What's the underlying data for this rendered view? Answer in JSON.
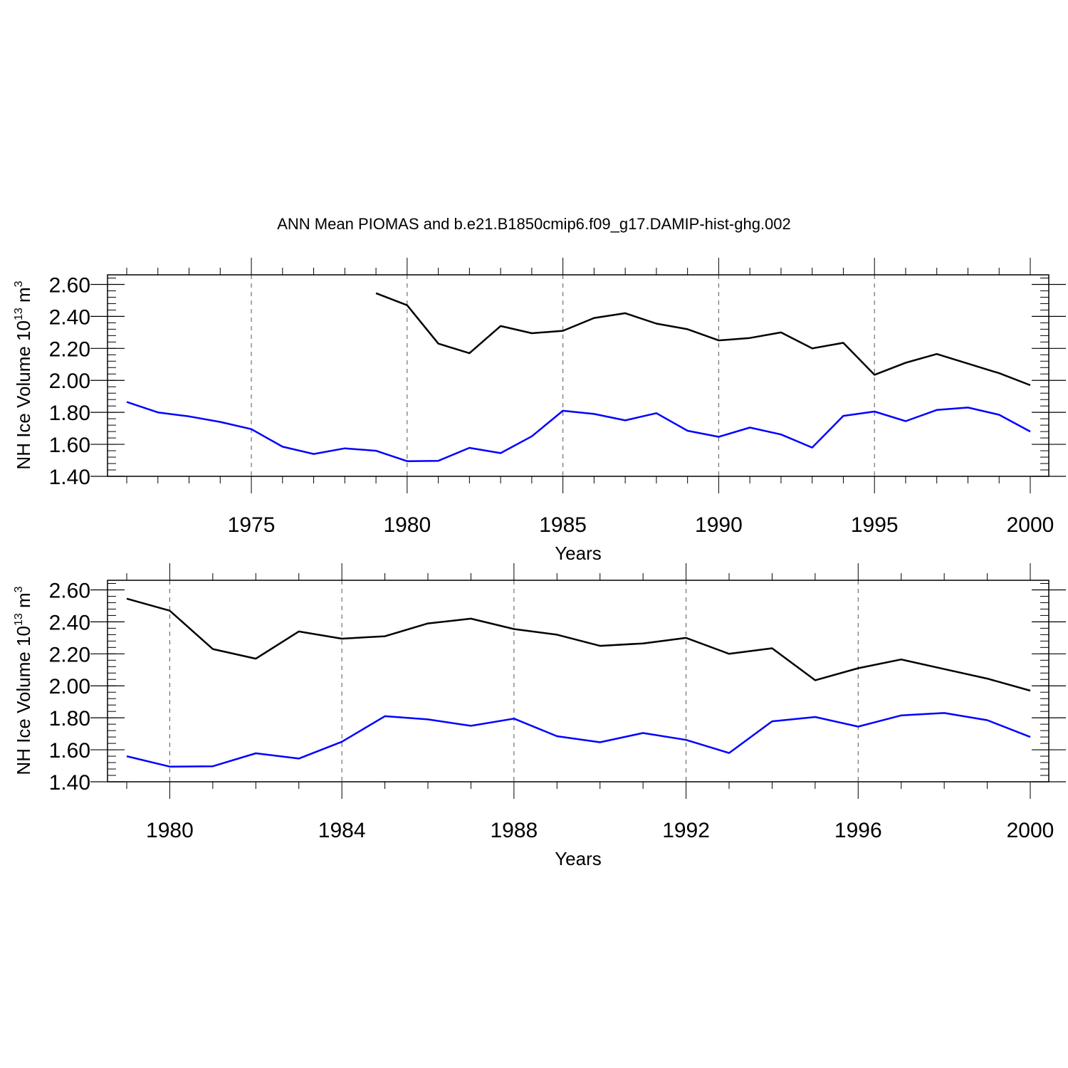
{
  "figure": {
    "title": "ANN Mean PIOMAS and b.e21.B1850cmip6.f09_g17.DAMIP-hist-ghg.002"
  },
  "chart_data": [
    {
      "type": "line",
      "xlabel": "Years",
      "ylabel_main": "NH Ice Volume 10",
      "ylabel_exp": "13",
      "ylabel_unit": " m",
      "ylabel_unit_exp": "3",
      "xlim": [
        1971,
        2000
      ],
      "ylim": [
        1.4,
        2.66
      ],
      "xticks": [
        1975,
        1980,
        1985,
        1990,
        1995,
        2000
      ],
      "yticks": [
        "1.40",
        "1.60",
        "1.80",
        "2.00",
        "2.20",
        "2.40",
        "2.60"
      ],
      "grid_x": "dashed vertical at major ticks",
      "series": [
        {
          "color": "#000000",
          "x": [
            1979,
            1980,
            1981,
            1982,
            1983,
            1984,
            1985,
            1986,
            1987,
            1988,
            1989,
            1990,
            1991,
            1992,
            1993,
            1994,
            1995,
            1996,
            1997,
            1998,
            1999,
            2000
          ],
          "y": [
            2.545,
            2.47,
            2.23,
            2.17,
            2.34,
            2.295,
            2.31,
            2.39,
            2.42,
            2.355,
            2.32,
            2.25,
            2.265,
            2.3,
            2.2,
            2.235,
            2.035,
            2.11,
            2.165,
            2.105,
            2.045,
            1.97
          ]
        },
        {
          "color": "#0000ff",
          "x": [
            1971,
            1972,
            1973,
            1974,
            1975,
            1976,
            1977,
            1978,
            1979,
            1980,
            1981,
            1982,
            1983,
            1984,
            1985,
            1986,
            1987,
            1988,
            1989,
            1990,
            1991,
            1992,
            1993,
            1994,
            1995,
            1996,
            1997,
            1998,
            1999,
            2000
          ],
          "y": [
            1.865,
            1.8,
            1.775,
            1.74,
            1.695,
            1.585,
            1.54,
            1.575,
            1.56,
            1.495,
            1.497,
            1.578,
            1.545,
            1.65,
            1.81,
            1.79,
            1.75,
            1.795,
            1.685,
            1.647,
            1.705,
            1.662,
            1.58,
            1.778,
            1.805,
            1.745,
            1.815,
            1.83,
            1.785,
            1.68
          ]
        }
      ]
    },
    {
      "type": "line",
      "xlabel": "Years",
      "ylabel_main": "NH Ice Volume 10",
      "ylabel_exp": "13",
      "ylabel_unit": " m",
      "ylabel_unit_exp": "3",
      "xlim": [
        1979,
        2000
      ],
      "ylim": [
        1.4,
        2.66
      ],
      "xticks": [
        1980,
        1984,
        1988,
        1992,
        1996,
        2000
      ],
      "yticks": [
        "1.40",
        "1.60",
        "1.80",
        "2.00",
        "2.20",
        "2.40",
        "2.60"
      ],
      "grid_x": "dashed vertical at major ticks",
      "series": [
        {
          "color": "#000000",
          "x": [
            1979,
            1980,
            1981,
            1982,
            1983,
            1984,
            1985,
            1986,
            1987,
            1988,
            1989,
            1990,
            1991,
            1992,
            1993,
            1994,
            1995,
            1996,
            1997,
            1998,
            1999,
            2000
          ],
          "y": [
            2.545,
            2.47,
            2.23,
            2.17,
            2.34,
            2.295,
            2.31,
            2.39,
            2.42,
            2.355,
            2.32,
            2.25,
            2.265,
            2.3,
            2.2,
            2.235,
            2.035,
            2.11,
            2.165,
            2.105,
            2.045,
            1.97
          ]
        },
        {
          "color": "#0000ff",
          "x": [
            1979,
            1980,
            1981,
            1982,
            1983,
            1984,
            1985,
            1986,
            1987,
            1988,
            1989,
            1990,
            1991,
            1992,
            1993,
            1994,
            1995,
            1996,
            1997,
            1998,
            1999,
            2000
          ],
          "y": [
            1.56,
            1.495,
            1.497,
            1.578,
            1.545,
            1.65,
            1.81,
            1.79,
            1.75,
            1.795,
            1.685,
            1.647,
            1.705,
            1.662,
            1.58,
            1.778,
            1.805,
            1.745,
            1.815,
            1.83,
            1.785,
            1.68
          ]
        }
      ]
    }
  ]
}
